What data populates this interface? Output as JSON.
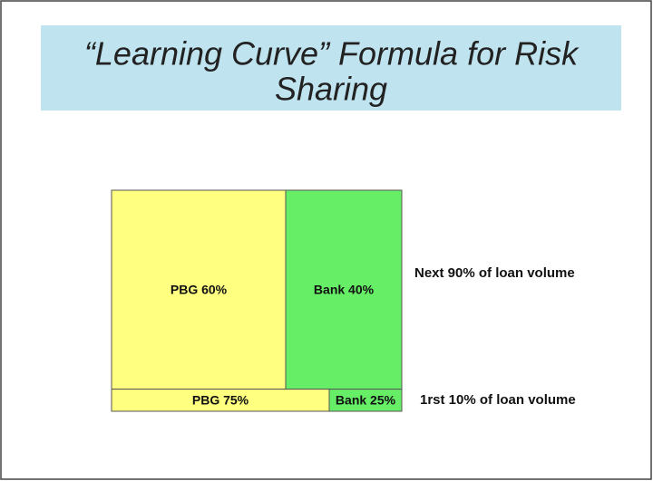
{
  "title": [
    "“Learning Curve” Formula for Risk",
    "Sharing"
  ],
  "rows": [
    {
      "label": "Next 90% of loan volume",
      "share": 90,
      "segments": [
        {
          "label": "PBG 60%",
          "value": 60,
          "color": "#ffff80"
        },
        {
          "label": "Bank 40%",
          "value": 40,
          "color": "#66ee66"
        }
      ]
    },
    {
      "label": "1rst 10% of loan volume",
      "share": 10,
      "segments": [
        {
          "label": "PBG 75%",
          "value": 75,
          "color": "#ffff80"
        },
        {
          "label": "Bank 25%",
          "value": 25,
          "color": "#66ee66"
        }
      ]
    }
  ]
}
